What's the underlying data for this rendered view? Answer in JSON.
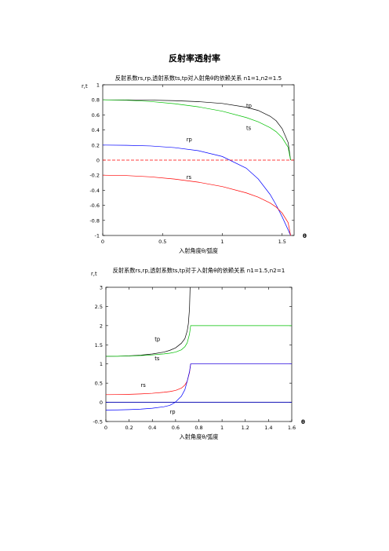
{
  "page": {
    "title": "反射率透射率"
  },
  "chart_data": [
    {
      "type": "line",
      "title": "反射系数rs,rp,透射系数ts,tp对入射角θ的依赖关系 n1=1,n2=1.5",
      "xlabel": "入射角度θ/弧度",
      "ylabel": "r,t",
      "x_axis_end_label": "θ",
      "xlim": [
        0,
        1.6
      ],
      "ylim": [
        -1,
        1
      ],
      "xticks": [
        0,
        0.5,
        1,
        1.5
      ],
      "yticks": [
        -1,
        -0.8,
        -0.6,
        -0.4,
        -0.2,
        0,
        0.2,
        0.4,
        0.6,
        0.8,
        1
      ],
      "ytick_labels": [
        "-1",
        "-0.8",
        "-0.6",
        "-0.4",
        "-0.2",
        "0",
        "0.2",
        "0.4",
        "0.6",
        "0.8",
        "1"
      ],
      "xtick_labels": [
        "0",
        "0.5",
        "1",
        "1.5"
      ],
      "series": [
        {
          "name": "tp",
          "color": "#000000",
          "x": [
            0,
            0.2,
            0.4,
            0.6,
            0.8,
            1.0,
            1.2,
            1.3,
            1.4,
            1.45,
            1.5,
            1.55,
            1.5708
          ],
          "y": [
            0.8,
            0.799,
            0.796,
            0.789,
            0.776,
            0.752,
            0.702,
            0.659,
            0.582,
            0.522,
            0.418,
            0.234,
            0
          ]
        },
        {
          "name": "ts",
          "color": "#00c000",
          "x": [
            0,
            0.2,
            0.4,
            0.6,
            0.8,
            1.0,
            1.2,
            1.3,
            1.4,
            1.45,
            1.5,
            1.55,
            1.5708
          ],
          "y": [
            0.8,
            0.795,
            0.778,
            0.749,
            0.707,
            0.649,
            0.565,
            0.509,
            0.43,
            0.377,
            0.298,
            0.17,
            0
          ]
        },
        {
          "name": "rp",
          "color": "#0000ff",
          "x": [
            0,
            0.2,
            0.4,
            0.6,
            0.8,
            1.0,
            1.2,
            1.3,
            1.4,
            1.45,
            1.5,
            1.55,
            1.5708
          ],
          "y": [
            0.2,
            0.197,
            0.188,
            0.166,
            0.125,
            0.048,
            -0.107,
            -0.25,
            -0.457,
            -0.595,
            -0.752,
            -0.925,
            -1
          ]
        },
        {
          "name": "rs",
          "color": "#ff0000",
          "x": [
            0,
            0.2,
            0.4,
            0.6,
            0.8,
            1.0,
            1.2,
            1.3,
            1.4,
            1.45,
            1.5,
            1.55,
            1.5708
          ],
          "y": [
            -0.2,
            -0.205,
            -0.222,
            -0.251,
            -0.293,
            -0.351,
            -0.435,
            -0.491,
            -0.57,
            -0.623,
            -0.702,
            -0.83,
            -1
          ]
        },
        {
          "name": "",
          "color": "#ff0000",
          "dash": "4,2",
          "x": [
            0,
            1.6
          ],
          "y": [
            0,
            0
          ]
        }
      ],
      "annotations": [
        {
          "text": "tp",
          "x": 1.2,
          "y": 0.7
        },
        {
          "text": "ts",
          "x": 1.2,
          "y": 0.4
        },
        {
          "text": "rp",
          "x": 0.7,
          "y": 0.25
        },
        {
          "text": "rs",
          "x": 0.7,
          "y": -0.25
        }
      ]
    },
    {
      "type": "line",
      "title": "反射系数rs,rp,透射系数ts,tp对于入射角θ的依赖关系 n1=1.5,n2=1",
      "xlabel": "入射角度θ/弧度",
      "ylabel": "r,t",
      "x_axis_end_label": "θ",
      "xlim": [
        0,
        1.6
      ],
      "ylim": [
        -0.5,
        3
      ],
      "xticks": [
        0,
        0.2,
        0.4,
        0.6,
        0.8,
        1,
        1.2,
        1.4,
        1.6
      ],
      "yticks": [
        -0.5,
        0,
        0.5,
        1,
        1.5,
        2,
        2.5,
        3
      ],
      "ytick_labels": [
        "-0.5",
        "0",
        "0.5",
        "1",
        "1.5",
        "2",
        "2.5",
        "3"
      ],
      "xtick_labels": [
        "0",
        "0.2",
        "0.4",
        "0.6",
        "0.8",
        "1",
        "1.2",
        "1.4",
        "1.6"
      ],
      "series": [
        {
          "name": "tp",
          "color": "#000000",
          "x": [
            0,
            0.1,
            0.2,
            0.3,
            0.4,
            0.5,
            0.55,
            0.6,
            0.65,
            0.68,
            0.7,
            0.71,
            0.72,
            0.725
          ],
          "y": [
            1.2,
            1.203,
            1.213,
            1.23,
            1.26,
            1.31,
            1.355,
            1.42,
            1.54,
            1.66,
            1.86,
            2.05,
            2.45,
            3.0
          ]
        },
        {
          "name": "ts",
          "color": "#00c000",
          "x": [
            0,
            0.1,
            0.2,
            0.3,
            0.4,
            0.5,
            0.55,
            0.6,
            0.65,
            0.68,
            0.7,
            0.72,
            0.7297,
            0.9,
            1.2,
            1.6
          ],
          "y": [
            1.2,
            1.202,
            1.208,
            1.219,
            1.236,
            1.262,
            1.28,
            1.31,
            1.37,
            1.45,
            1.55,
            1.78,
            2.0,
            2.0,
            2.0,
            2.0
          ]
        },
        {
          "name": "rs",
          "color": "#ff0000",
          "x": [
            0,
            0.1,
            0.2,
            0.3,
            0.4,
            0.5,
            0.55,
            0.6,
            0.65,
            0.68,
            0.7,
            0.72,
            0.7297,
            0.9,
            1.2,
            1.6
          ],
          "y": [
            0.2,
            0.202,
            0.208,
            0.219,
            0.236,
            0.262,
            0.28,
            0.31,
            0.37,
            0.45,
            0.55,
            0.78,
            1.0,
            1.0,
            1.0,
            1.0
          ]
        },
        {
          "name": "rp",
          "color": "#0000ff",
          "x": [
            0,
            0.1,
            0.2,
            0.3,
            0.4,
            0.5,
            0.55,
            0.58,
            0.6,
            0.65,
            0.68,
            0.7,
            0.72,
            0.7297,
            0.9,
            1.2,
            1.6
          ],
          "y": [
            -0.2,
            -0.198,
            -0.19,
            -0.177,
            -0.155,
            -0.115,
            -0.08,
            -0.03,
            0.01,
            0.16,
            0.33,
            0.55,
            0.8,
            1.0,
            1.0,
            1.0,
            1.0
          ]
        },
        {
          "name": "",
          "color": "#000000",
          "x": [
            0,
            1.6
          ],
          "y": [
            0,
            0
          ]
        },
        {
          "name": "",
          "color": "#0000ff",
          "x": [
            0,
            1.6
          ],
          "y": [
            0.005,
            0.005
          ]
        }
      ],
      "annotations": [
        {
          "text": "tp",
          "x": 0.42,
          "y": 1.6
        },
        {
          "text": "ts",
          "x": 0.42,
          "y": 1.1
        },
        {
          "text": "rs",
          "x": 0.3,
          "y": 0.4
        },
        {
          "text": "rp",
          "x": 0.55,
          "y": -0.3
        }
      ]
    }
  ]
}
